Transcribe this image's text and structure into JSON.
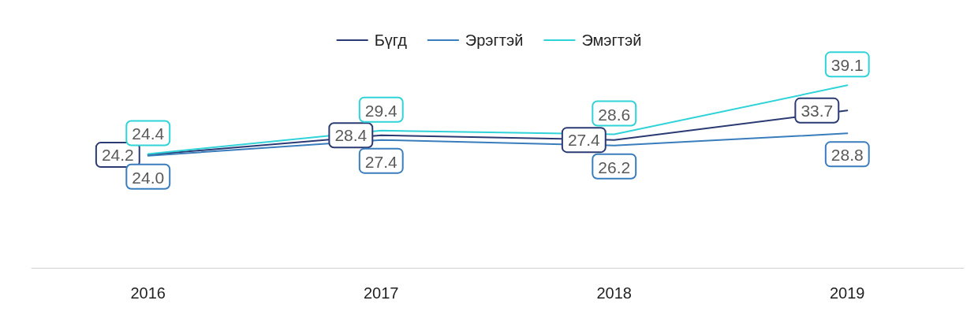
{
  "chart_data": {
    "type": "line",
    "categories": [
      "2016",
      "2017",
      "2018",
      "2019"
    ],
    "series": [
      {
        "name": "Бүгд",
        "color": "#2b3a73",
        "values": [
          24.2,
          28.4,
          27.4,
          33.7
        ],
        "value_labels": [
          "24.2",
          "28.4",
          "27.4",
          "33.7"
        ]
      },
      {
        "name": "Эрэгтэй",
        "color": "#3a7dbd",
        "values": [
          24.0,
          27.4,
          26.2,
          28.8
        ],
        "value_labels": [
          "24.0",
          "27.4",
          "26.2",
          "28.8"
        ]
      },
      {
        "name": "Эмэгтэй",
        "color": "#2fd3d8",
        "values": [
          24.4,
          29.4,
          28.6,
          39.1
        ],
        "value_labels": [
          "24.4",
          "29.4",
          "28.6",
          "39.1"
        ]
      }
    ],
    "legend": "top",
    "grid": false
  }
}
